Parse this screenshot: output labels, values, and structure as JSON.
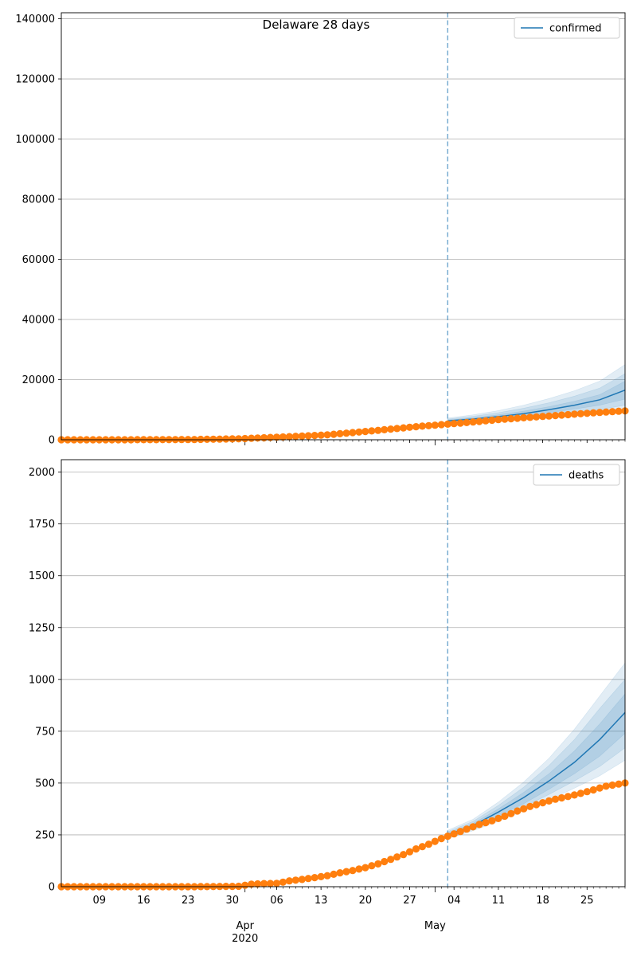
{
  "chart_data": [
    {
      "type": "line",
      "title": "Delaware 28 days",
      "legend_position": "top-right",
      "grid": "y",
      "ylim": [
        0,
        142000
      ],
      "yticks": [
        0,
        20000,
        40000,
        60000,
        80000,
        100000,
        120000,
        140000
      ],
      "series": [
        {
          "name": "confirmed",
          "kind": "forecast_median_line",
          "color": "#1f77b4",
          "band_color": "#1f77b4",
          "points": [
            [
              "2020-05-03",
              6300
            ],
            [
              "2020-05-07",
              6900
            ],
            [
              "2020-05-11",
              7700
            ],
            [
              "2020-05-15",
              8700
            ],
            [
              "2020-05-19",
              10000
            ],
            [
              "2020-05-23",
              11500
            ],
            [
              "2020-05-27",
              13300
            ],
            [
              "2020-05-31",
              16500
            ]
          ],
          "bands": [
            {
              "lower": [
                6000,
                6500,
                7200,
                8000,
                9000,
                10200,
                11500,
                13500
              ],
              "upper": [
                6600,
                7300,
                8300,
                9500,
                11000,
                12800,
                15000,
                19500
              ]
            },
            {
              "lower": [
                5700,
                6100,
                6700,
                7300,
                8100,
                9000,
                10000,
                11500
              ],
              "upper": [
                6900,
                7800,
                9000,
                10500,
                12300,
                14500,
                17200,
                22000
              ]
            },
            {
              "lower": [
                5400,
                5700,
                6200,
                6700,
                7300,
                8000,
                8800,
                10000
              ],
              "upper": [
                7200,
                8300,
                9700,
                11500,
                13700,
                16300,
                19500,
                25000
              ]
            }
          ]
        },
        {
          "name": "",
          "kind": "observed",
          "color": "#ff7f0e",
          "points": [
            [
              "2020-03-03",
              0
            ],
            [
              "2020-03-10",
              0
            ],
            [
              "2020-03-17",
              20
            ],
            [
              "2020-03-24",
              90
            ],
            [
              "2020-03-31",
              320
            ],
            [
              "2020-04-07",
              930
            ],
            [
              "2020-04-14",
              1630
            ],
            [
              "2020-04-21",
              2930
            ],
            [
              "2020-04-28",
              4350
            ],
            [
              "2020-05-03",
              5200
            ],
            [
              "2020-05-07",
              5900
            ],
            [
              "2020-05-11",
              6700
            ],
            [
              "2020-05-15",
              7300
            ],
            [
              "2020-05-19",
              7900
            ],
            [
              "2020-05-23",
              8500
            ],
            [
              "2020-05-27",
              9100
            ],
            [
              "2020-05-31",
              9600
            ]
          ]
        }
      ]
    },
    {
      "type": "line",
      "title": "",
      "legend_position": "top-right",
      "grid": "y",
      "ylim": [
        0,
        2060
      ],
      "yticks": [
        0,
        250,
        500,
        750,
        1000,
        1250,
        1500,
        1750,
        2000
      ],
      "series": [
        {
          "name": "deaths",
          "kind": "forecast_median_line",
          "color": "#1f77b4",
          "band_color": "#1f77b4",
          "points": [
            [
              "2020-05-03",
              250
            ],
            [
              "2020-05-07",
              295
            ],
            [
              "2020-05-11",
              360
            ],
            [
              "2020-05-15",
              430
            ],
            [
              "2020-05-19",
              510
            ],
            [
              "2020-05-23",
              600
            ],
            [
              "2020-05-27",
              710
            ],
            [
              "2020-05-31",
              840
            ]
          ],
          "bands": [
            {
              "lower": [
                245,
                285,
                340,
                400,
                470,
                545,
                630,
                740
              ],
              "upper": [
                258,
                305,
                375,
                455,
                545,
                655,
                785,
                930
              ]
            },
            {
              "lower": [
                240,
                278,
                328,
                385,
                445,
                510,
                580,
                670
              ],
              "upper": [
                265,
                315,
                392,
                480,
                585,
                710,
                860,
                1000
              ]
            },
            {
              "lower": [
                232,
                270,
                315,
                365,
                418,
                475,
                535,
                610
              ],
              "upper": [
                272,
                325,
                408,
                505,
                620,
                760,
                920,
                1080
              ]
            }
          ]
        },
        {
          "name": "",
          "kind": "observed",
          "color": "#ff7f0e",
          "points": [
            [
              "2020-03-03",
              0
            ],
            [
              "2020-03-10",
              0
            ],
            [
              "2020-03-17",
              0
            ],
            [
              "2020-03-24",
              0
            ],
            [
              "2020-03-31",
              2
            ],
            [
              "2020-04-02",
              12
            ],
            [
              "2020-04-04",
              15
            ],
            [
              "2020-04-06",
              16
            ],
            [
              "2020-04-08",
              28
            ],
            [
              "2020-04-10",
              35
            ],
            [
              "2020-04-12",
              44
            ],
            [
              "2020-04-14",
              53
            ],
            [
              "2020-04-16",
              67
            ],
            [
              "2020-04-18",
              78
            ],
            [
              "2020-04-20",
              92
            ],
            [
              "2020-04-22",
              110
            ],
            [
              "2020-04-24",
              132
            ],
            [
              "2020-04-26",
              155
            ],
            [
              "2020-04-28",
              182
            ],
            [
              "2020-04-30",
              205
            ],
            [
              "2020-05-02",
              232
            ],
            [
              "2020-05-04",
              255
            ],
            [
              "2020-05-06",
              278
            ],
            [
              "2020-05-08",
              300
            ],
            [
              "2020-05-10",
              318
            ],
            [
              "2020-05-12",
              340
            ],
            [
              "2020-05-14",
              365
            ],
            [
              "2020-05-16",
              387
            ],
            [
              "2020-05-18",
              405
            ],
            [
              "2020-05-20",
              422
            ],
            [
              "2020-05-22",
              435
            ],
            [
              "2020-05-24",
              450
            ],
            [
              "2020-05-26",
              467
            ],
            [
              "2020-05-28",
              485
            ],
            [
              "2020-05-31",
              500
            ]
          ]
        }
      ]
    }
  ],
  "xaxis": {
    "start": "2020-03-03",
    "end": "2020-05-31",
    "forecast_start": "2020-05-03",
    "minor_labels": [
      [
        "2020-03-09",
        "09"
      ],
      [
        "2020-03-16",
        "16"
      ],
      [
        "2020-03-23",
        "23"
      ],
      [
        "2020-03-30",
        "30"
      ],
      [
        "2020-04-06",
        "06"
      ],
      [
        "2020-04-13",
        "13"
      ],
      [
        "2020-04-20",
        "20"
      ],
      [
        "2020-04-27",
        "27"
      ],
      [
        "2020-05-04",
        "04"
      ],
      [
        "2020-05-11",
        "11"
      ],
      [
        "2020-05-18",
        "18"
      ],
      [
        "2020-05-25",
        "25"
      ]
    ],
    "major_labels": [
      [
        "2020-04-01",
        "Apr",
        "2020"
      ],
      [
        "2020-05-01",
        "May",
        ""
      ]
    ]
  }
}
